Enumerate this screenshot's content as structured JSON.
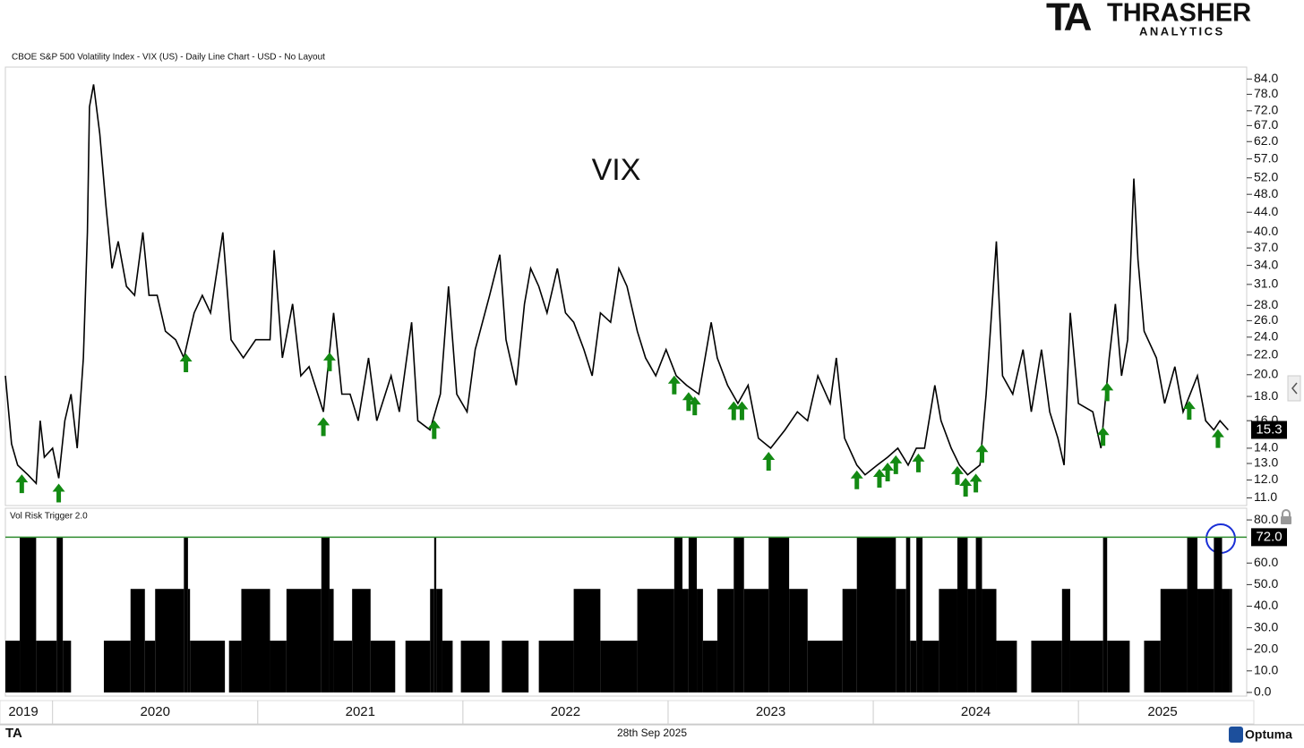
{
  "header": {
    "logo_mark": "TA",
    "brand": "THRASHER",
    "brand_sub": "ANALYTICS",
    "chart_caption": "CBOE S&P 500 Volatility Index - VIX (US) - Daily Line Chart - USD - No Layout"
  },
  "chart_data": [
    {
      "type": "line",
      "annotation": "VIX",
      "color": "#000000",
      "log_scale": true,
      "xlim": [
        2019.77,
        2025.82
      ],
      "ylim": [
        10.6,
        89
      ],
      "yticks": [
        {
          "value": 84,
          "label": "84.0"
        },
        {
          "value": 78,
          "label": "78.0"
        },
        {
          "value": 72,
          "label": "72.0"
        },
        {
          "value": 67,
          "label": "67.0"
        },
        {
          "value": 62,
          "label": "62.0"
        },
        {
          "value": 57,
          "label": "57.0"
        },
        {
          "value": 52,
          "label": "52.0"
        },
        {
          "value": 48,
          "label": "48.0"
        },
        {
          "value": 44,
          "label": "44.0"
        },
        {
          "value": 40,
          "label": "40.0"
        },
        {
          "value": 37,
          "label": "37.0"
        },
        {
          "value": 34,
          "label": "34.0"
        },
        {
          "value": 31,
          "label": "31.0"
        },
        {
          "value": 28,
          "label": "28.0"
        },
        {
          "value": 26,
          "label": "26.0"
        },
        {
          "value": 24,
          "label": "24.0"
        },
        {
          "value": 22,
          "label": "22.0"
        },
        {
          "value": 20,
          "label": "20.0"
        },
        {
          "value": 18,
          "label": "18.0"
        },
        {
          "value": 16,
          "label": "16.0"
        },
        {
          "value": 14,
          "label": "14.0"
        },
        {
          "value": 13,
          "label": "13.0"
        },
        {
          "value": 12,
          "label": "12.0"
        },
        {
          "value": 11,
          "label": "11.0"
        }
      ],
      "x": [
        2019.77,
        2019.8,
        2019.83,
        2019.88,
        2019.92,
        2019.94,
        2019.96,
        2020.0,
        2020.03,
        2020.06,
        2020.09,
        2020.12,
        2020.15,
        2020.17,
        2020.18,
        2020.2,
        2020.23,
        2020.26,
        2020.29,
        2020.32,
        2020.36,
        2020.4,
        2020.44,
        2020.47,
        2020.51,
        2020.55,
        2020.6,
        2020.64,
        2020.69,
        2020.73,
        2020.77,
        2020.83,
        2020.87,
        2020.93,
        2020.99,
        2021.06,
        2021.08,
        2021.12,
        2021.17,
        2021.21,
        2021.25,
        2021.32,
        2021.37,
        2021.41,
        2021.45,
        2021.49,
        2021.54,
        2021.58,
        2021.65,
        2021.69,
        2021.75,
        2021.78,
        2021.84,
        2021.89,
        2021.93,
        2021.97,
        2022.02,
        2022.06,
        2022.13,
        2022.18,
        2022.21,
        2022.26,
        2022.3,
        2022.33,
        2022.37,
        2022.41,
        2022.46,
        2022.5,
        2022.54,
        2022.59,
        2022.63,
        2022.67,
        2022.72,
        2022.76,
        2022.8,
        2022.85,
        2022.89,
        2022.94,
        2022.99,
        2023.04,
        2023.09,
        2023.15,
        2023.21,
        2023.24,
        2023.29,
        2023.34,
        2023.39,
        2023.44,
        2023.5,
        2023.57,
        2023.63,
        2023.68,
        2023.73,
        2023.79,
        2023.82,
        2023.86,
        2023.92,
        2023.96,
        2024.02,
        2024.07,
        2024.12,
        2024.17,
        2024.21,
        2024.25,
        2024.3,
        2024.33,
        2024.38,
        2024.42,
        2024.46,
        2024.52,
        2024.55,
        2024.6,
        2024.63,
        2024.68,
        2024.73,
        2024.77,
        2024.82,
        2024.86,
        2024.9,
        2024.93,
        2024.96,
        2025.0,
        2025.07,
        2025.11,
        2025.15,
        2025.18,
        2025.21,
        2025.24,
        2025.27,
        2025.29,
        2025.32,
        2025.38,
        2025.42,
        2025.47,
        2025.51,
        2025.58,
        2025.62,
        2025.66,
        2025.69,
        2025.73
      ],
      "values": [
        19.9,
        14.3,
        12.9,
        12.3,
        11.8,
        16.0,
        13.4,
        14.0,
        12.1,
        16.0,
        18.2,
        14.0,
        21.7,
        39.9,
        73.4,
        81.8,
        64.4,
        45.4,
        33.5,
        38.2,
        30.7,
        29.4,
        39.9,
        29.4,
        29.4,
        24.7,
        23.7,
        21.7,
        27.0,
        29.4,
        27.0,
        39.9,
        23.7,
        21.7,
        23.7,
        23.7,
        36.6,
        21.7,
        28.2,
        19.9,
        20.8,
        16.7,
        27.0,
        18.2,
        18.2,
        16.0,
        21.7,
        16.0,
        19.9,
        16.7,
        25.8,
        16.0,
        15.3,
        18.2,
        30.7,
        18.2,
        16.7,
        22.6,
        29.4,
        35.8,
        23.7,
        19.0,
        28.2,
        33.5,
        30.7,
        27.0,
        33.5,
        27.0,
        25.8,
        22.6,
        19.9,
        27.0,
        25.8,
        33.5,
        30.7,
        24.7,
        21.7,
        19.9,
        22.6,
        19.9,
        19.0,
        18.2,
        25.8,
        21.7,
        19.0,
        17.4,
        19.0,
        14.7,
        14.0,
        15.3,
        16.7,
        16.0,
        19.9,
        17.4,
        21.7,
        14.7,
        12.9,
        12.3,
        12.9,
        13.4,
        14.0,
        12.9,
        14.0,
        14.0,
        19.0,
        16.0,
        14.0,
        12.9,
        12.3,
        12.9,
        18.2,
        38.2,
        19.9,
        18.2,
        22.6,
        16.7,
        22.6,
        16.7,
        14.7,
        12.9,
        27.0,
        17.4,
        16.7,
        14.0,
        21.7,
        28.2,
        19.9,
        23.7,
        51.8,
        35.0,
        24.7,
        21.7,
        17.4,
        20.8,
        16.7,
        19.9,
        16.0,
        15.3,
        16.0,
        15.3
      ],
      "signals": [
        2019.85,
        2020.03,
        2020.65,
        2021.32,
        2021.35,
        2021.86,
        2023.03,
        2023.1,
        2023.13,
        2023.32,
        2023.36,
        2023.49,
        2023.92,
        2024.03,
        2024.07,
        2024.11,
        2024.22,
        2024.41,
        2024.45,
        2024.5,
        2024.53,
        2025.12,
        2025.14,
        2025.54,
        2025.68
      ],
      "signal_color": "#138a13"
    },
    {
      "type": "step_bar",
      "title": "Vol Risk Trigger 2.0",
      "color": "#000000",
      "xlim": [
        2019.77,
        2025.82
      ],
      "ylim": [
        -1.7,
        84.6
      ],
      "yticks": [
        {
          "value": 80,
          "label": "80.0"
        },
        {
          "value": 60,
          "label": "60.0"
        },
        {
          "value": 50,
          "label": "50.0"
        },
        {
          "value": 40,
          "label": "40.0"
        },
        {
          "value": 30,
          "label": "30.0"
        },
        {
          "value": 20,
          "label": "20.0"
        },
        {
          "value": 10,
          "label": "10.0"
        },
        {
          "value": 0,
          "label": "0.0"
        }
      ],
      "threshold": {
        "value": 72,
        "label": "72.0"
      },
      "threshold_color": "#2e8b2e",
      "xticks": [
        2020,
        2021,
        2022,
        2023,
        2024,
        2025
      ],
      "categories": [
        "2019",
        "2020",
        "2021",
        "2022",
        "2023",
        "2024",
        "2025"
      ],
      "x": [
        2019.77,
        2019.84,
        2019.92,
        2020.02,
        2020.05,
        2020.09,
        2020.25,
        2020.38,
        2020.45,
        2020.5,
        2020.64,
        2020.66,
        2020.67,
        2020.84,
        2020.86,
        2020.92,
        2021.06,
        2021.14,
        2021.31,
        2021.35,
        2021.37,
        2021.46,
        2021.55,
        2021.67,
        2021.72,
        2021.84,
        2021.86,
        2021.87,
        2021.9,
        2021.95,
        2021.99,
        2022.13,
        2022.19,
        2022.32,
        2022.37,
        2022.54,
        2022.67,
        2022.85,
        2023.03,
        2023.07,
        2023.1,
        2023.14,
        2023.17,
        2023.24,
        2023.32,
        2023.37,
        2023.49,
        2023.59,
        2023.68,
        2023.85,
        2023.92,
        2024.11,
        2024.16,
        2024.18,
        2024.21,
        2024.24,
        2024.32,
        2024.41,
        2024.46,
        2024.5,
        2024.53,
        2024.6,
        2024.7,
        2024.77,
        2024.92,
        2024.96,
        2025.12,
        2025.14,
        2025.25,
        2025.32,
        2025.4,
        2025.53,
        2025.58,
        2025.66,
        2025.7,
        2025.74
      ],
      "values": [
        24,
        72,
        24,
        72,
        24,
        0,
        24,
        48,
        24,
        48,
        72,
        48,
        24,
        0,
        24,
        48,
        24,
        48,
        72,
        48,
        24,
        48,
        24,
        0,
        24,
        48,
        72,
        48,
        24,
        0,
        24,
        0,
        24,
        0,
        24,
        48,
        24,
        48,
        72,
        48,
        72,
        48,
        24,
        48,
        72,
        48,
        72,
        48,
        24,
        48,
        72,
        48,
        72,
        24,
        72,
        24,
        48,
        72,
        48,
        72,
        48,
        24,
        0,
        24,
        48,
        24,
        72,
        24,
        0,
        24,
        48,
        72,
        48,
        72,
        48,
        48
      ]
    }
  ],
  "footer": {
    "date": "28th Sep 2025",
    "brand": "Optuma"
  }
}
